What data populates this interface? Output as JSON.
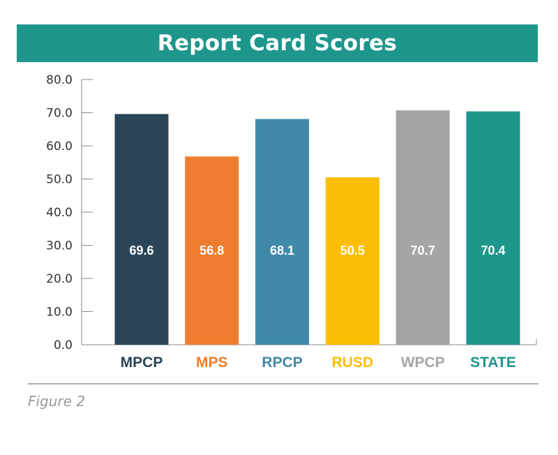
{
  "title": "Report Card Scores",
  "caption": "Figure 2",
  "chart_data": {
    "type": "bar",
    "title": "Report Card Scores",
    "categories": [
      "MPCP",
      "MPS",
      "RPCP",
      "RUSD",
      "WPCP",
      "STATE"
    ],
    "values": [
      69.6,
      56.8,
      68.1,
      50.5,
      70.7,
      70.4
    ],
    "value_labels": [
      "69.6",
      "56.8",
      "68.1",
      "50.5",
      "70.7",
      "70.4"
    ],
    "colors": [
      "#2a4557",
      "#ee7d2f",
      "#4189a8",
      "#fcbe05",
      "#a5a5a5",
      "#1e968c"
    ],
    "ylim": [
      0,
      80
    ],
    "yticks": [
      "0.0",
      "10.0",
      "20.0",
      "30.0",
      "40.0",
      "50.0",
      "60.0",
      "70.0",
      "80.0"
    ],
    "ytick_values": [
      0,
      10,
      20,
      30,
      40,
      50,
      60,
      70,
      80
    ],
    "grid": false,
    "legend": "none"
  }
}
